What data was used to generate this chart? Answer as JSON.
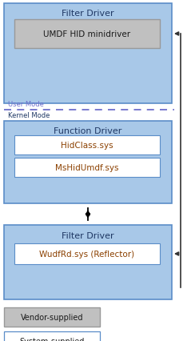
{
  "bg_color": "#ffffff",
  "light_blue": "#a8c8e8",
  "white": "#ffffff",
  "gray": "#c0c0c0",
  "text_dark": "#1f3864",
  "text_orange": "#8b4000",
  "dashed_color": "#7070cc",
  "kernel_text_color": "#1f3864",
  "filter_driver_top_label": "Filter Driver",
  "umdf_label": "UMDF HID minidriver",
  "user_mode_label": "User Mode",
  "kernel_mode_label": "Kernel Mode",
  "function_driver_label": "Function Driver",
  "hidclass_label": "HidClass.sys",
  "mshidumdf_label": "MsHidUmdf.sys",
  "filter_driver_bot_label": "Filter Driver",
  "wudfrd_label": "WudfRd.sys (Reflector)",
  "vendor_label": "Vendor-supplied",
  "system_label": "System-supplied",
  "figwidth": 2.44,
  "figheight": 4.27,
  "dpi": 100
}
